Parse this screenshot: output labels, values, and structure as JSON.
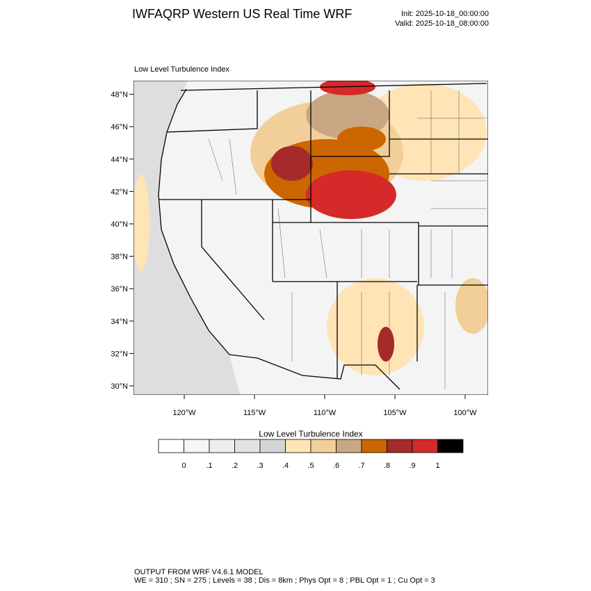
{
  "header": {
    "title": "IWFAQRP Western US Real Time WRF",
    "init": "Init: 2025-10-18_00:00:00",
    "valid": "Valid: 2025-10-18_08:00:00"
  },
  "map": {
    "subtitle": "Low Level Turbulence Index",
    "lat_ticks": [
      "30°N",
      "32°N",
      "34°N",
      "36°N",
      "38°N",
      "40°N",
      "42°N",
      "44°N",
      "46°N",
      "48°N"
    ],
    "lon_ticks": [
      "120°W",
      "115°W",
      "110°W",
      "105°W",
      "100°W"
    ]
  },
  "colorbar": {
    "title": "Low Level Turbulence Index",
    "labels": [
      "0",
      ".1",
      ".2",
      ".3",
      ".4",
      ".5",
      ".6",
      ".7",
      ".8",
      ".9",
      "1"
    ],
    "colors": [
      "#ffffff",
      "#f6f6f6",
      "#eeeeee",
      "#e2e2e2",
      "#d4d4d4",
      "#ffe4b5",
      "#f2cf99",
      "#c9a784",
      "#cc6600",
      "#a52a2a",
      "#d42a2a",
      "#000000"
    ]
  },
  "footer": {
    "line1": "OUTPUT FROM WRF V4.6.1 MODEL",
    "line2": "WE = 310 ; SN = 275 ; Levels = 38 ; Dis = 8km ; Phys Opt = 8 ; PBL Opt = 1 ; Cu Opt = 3"
  }
}
